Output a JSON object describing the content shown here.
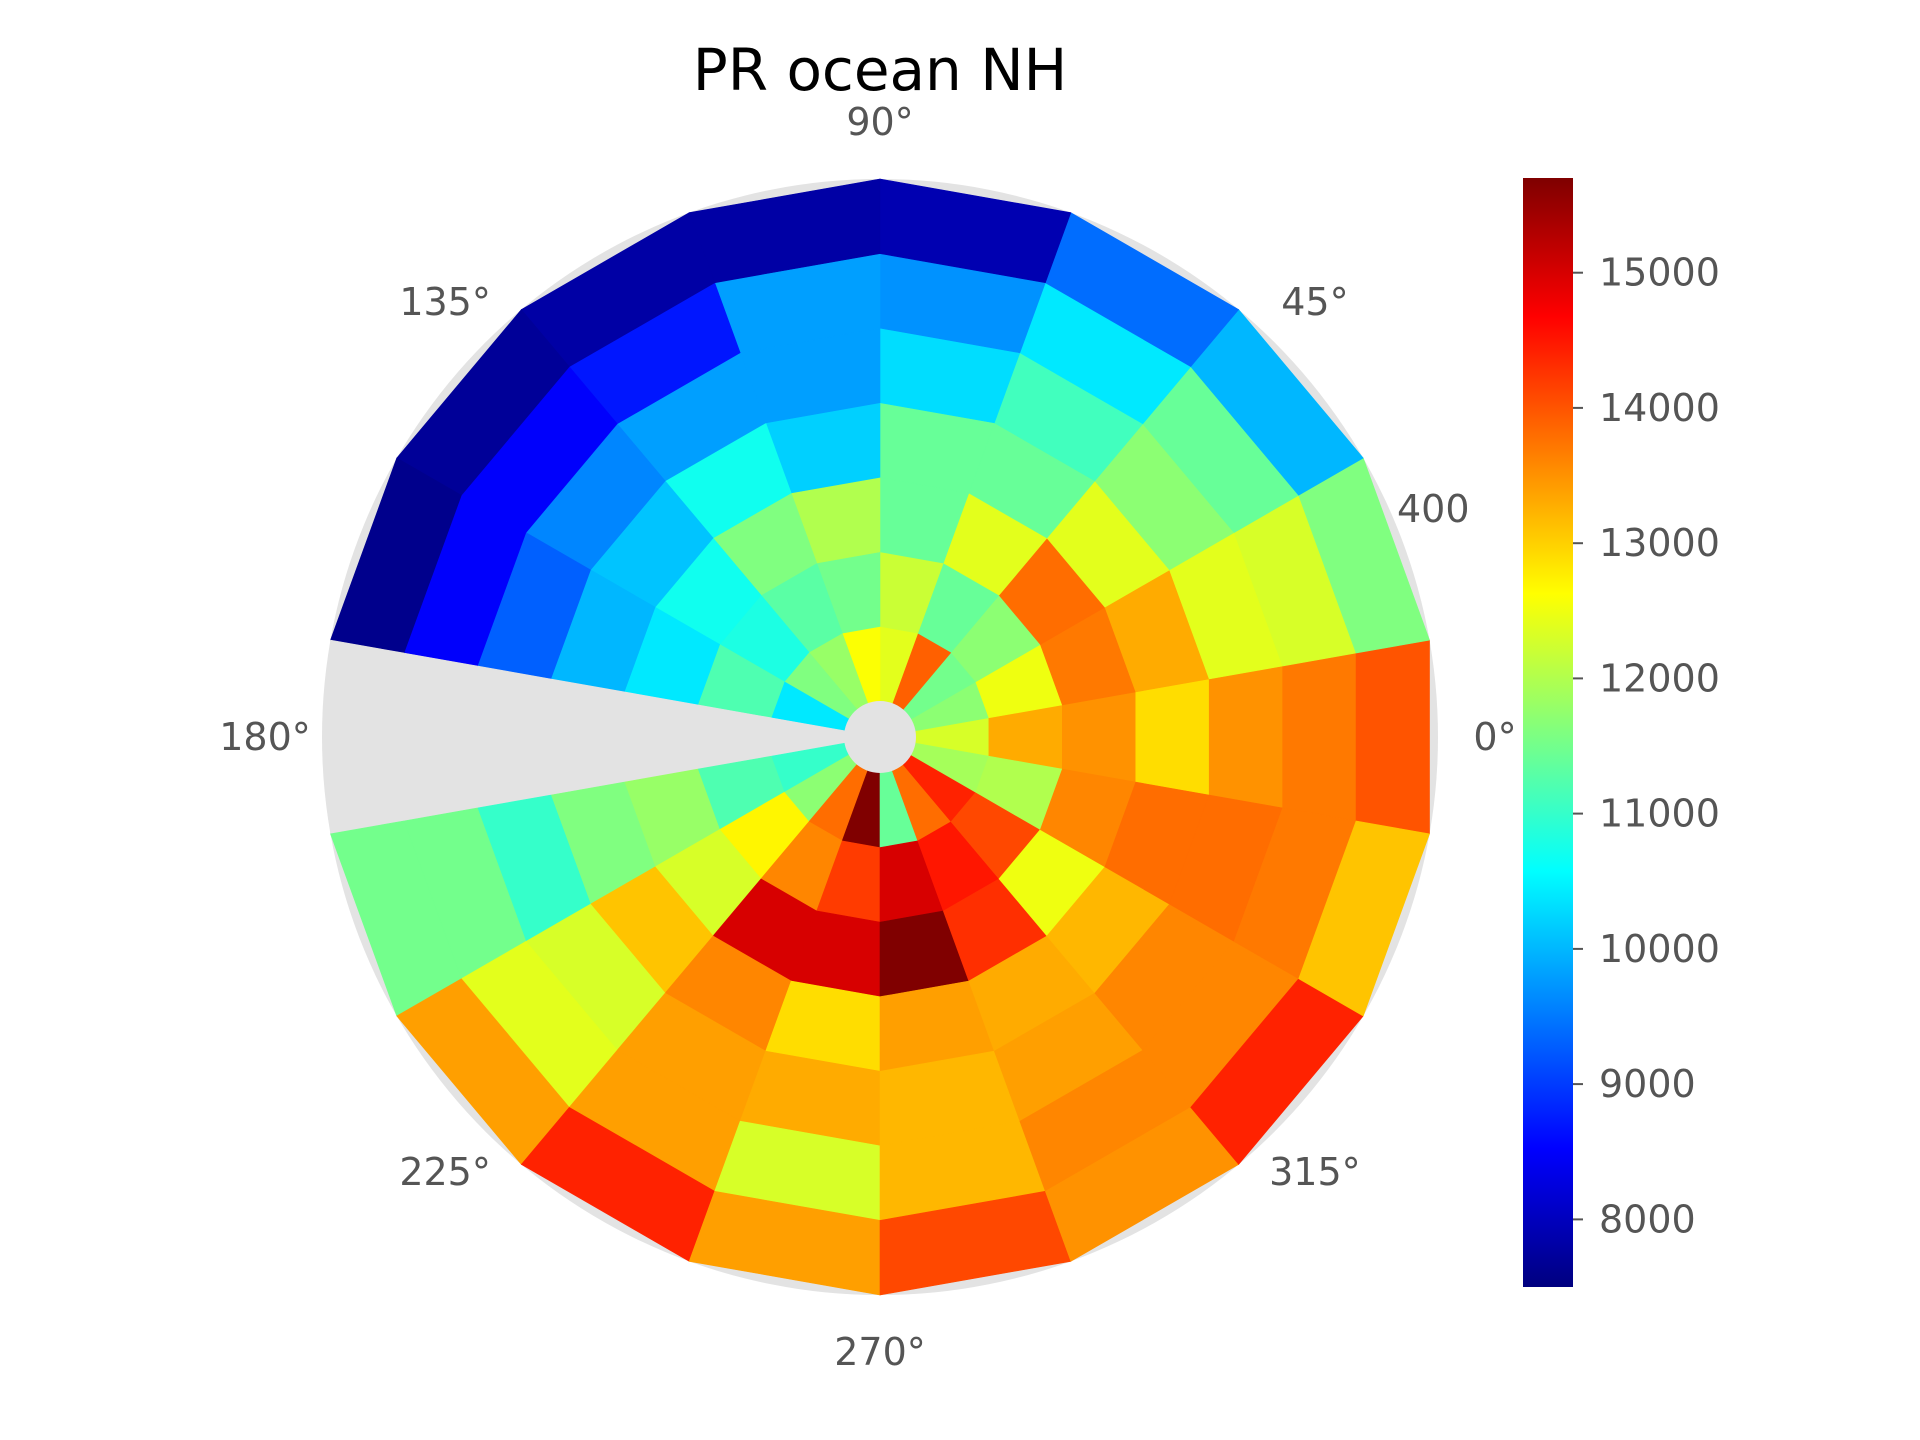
{
  "chart_data": {
    "type": "heatmap",
    "subtype": "polar",
    "title": "PR ocean NH",
    "colormap": "jet",
    "grid": false,
    "theta_tick_labels": [
      "0°",
      "45°",
      "90°",
      "135°",
      "180°",
      "225°",
      "270°",
      "315°"
    ],
    "radial_tick_labels": [
      "400"
    ],
    "colorbar": {
      "location": "right",
      "vmin": 7500,
      "vmax": 15700,
      "ticks": [
        8000,
        9000,
        10000,
        11000,
        12000,
        13000,
        14000,
        15000
      ],
      "tick_labels": [
        "8000",
        "9000",
        "10000",
        "11000",
        "12000",
        "13000",
        "14000",
        "15000"
      ]
    },
    "sector_count": 18,
    "sector_width_deg": 20,
    "first_sector_start_deg": -10,
    "ring_count": 7,
    "missing_value": null,
    "missing_color": "#e3e3e3",
    "sectors_deg": [
      0,
      20,
      40,
      60,
      80,
      100,
      120,
      140,
      160,
      180,
      200,
      220,
      240,
      260,
      280,
      300,
      320,
      340
    ],
    "values_by_ring_inner_to_outer": [
      [
        12300,
        11700,
        11500,
        13900,
        12400,
        12600,
        11800,
        11600,
        10400,
        null,
        11000,
        11700,
        13800,
        15700,
        11400,
        13800,
        14400,
        11900
      ],
      [
        13300,
        12500,
        11700,
        11400,
        12200,
        11500,
        11300,
        10800,
        11200,
        null,
        11200,
        12700,
        13600,
        14200,
        15000,
        14500,
        14100,
        12000
      ],
      [
        13500,
        13700,
        13800,
        12400,
        11400,
        12000,
        11600,
        10700,
        10400,
        null,
        11800,
        12300,
        15000,
        15000,
        15700,
        14300,
        12500,
        13600
      ],
      [
        12900,
        13300,
        12400,
        11400,
        11400,
        10200,
        10700,
        10100,
        10000,
        null,
        11600,
        13100,
        13600,
        12900,
        13400,
        13300,
        13200,
        13800
      ],
      [
        13500,
        12400,
        11700,
        11100,
        10300,
        9800,
        9800,
        9600,
        9300,
        null,
        11000,
        12300,
        13400,
        13300,
        13200,
        13400,
        13600,
        13800
      ],
      [
        13700,
        12300,
        11400,
        10400,
        9700,
        9800,
        8700,
        8500,
        8500,
        null,
        11500,
        12400,
        13400,
        12300,
        13200,
        13600,
        13600,
        13700
      ],
      [
        14000,
        11600,
        10000,
        9400,
        7900,
        7800,
        7800,
        7700,
        7600,
        null,
        11500,
        13400,
        14400,
        13400,
        14100,
        13500,
        14400,
        13100
      ]
    ]
  }
}
